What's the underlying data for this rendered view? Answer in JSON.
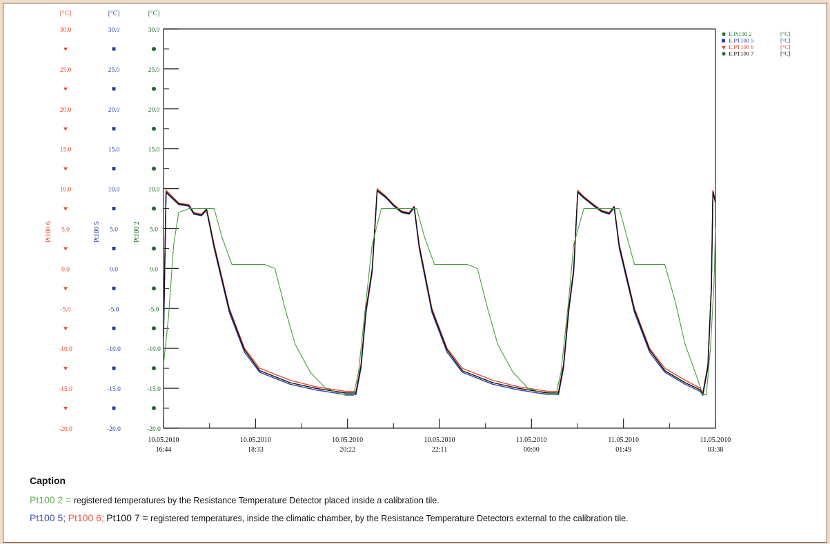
{
  "chart_data": {
    "type": "line",
    "x_ticks": [
      {
        "date": "10.05.2010",
        "time": "16:44"
      },
      {
        "date": "10.05.2010",
        "time": "18:33"
      },
      {
        "date": "10.05.2010",
        "time": "20:22"
      },
      {
        "date": "10.05.2010",
        "time": "22:11"
      },
      {
        "date": "11.05.2010",
        "time": "00:00"
      },
      {
        "date": "11.05.2010",
        "time": "01:49"
      },
      {
        "date": "11.05.2010",
        "time": "03:38"
      }
    ],
    "x_unit_hours": true,
    "xlim": [
      0,
      10.9
    ],
    "ylim": [
      -20,
      30
    ],
    "y_ticks": [
      "30.0",
      "25.0",
      "20.0",
      "15.0",
      "10.0",
      "5.0",
      "0.0",
      "-5.0",
      "-10.0",
      "-15.0",
      "-20.0"
    ],
    "y_axes": [
      {
        "unit": "[°C]",
        "label": "Pt100 6",
        "color": "#e8472f",
        "marker": "triangle"
      },
      {
        "unit": "[°C]",
        "label": "Pt100 5",
        "color": "#2a3fa3",
        "marker": "square"
      },
      {
        "unit": "[°C]",
        "label": "Pt100 2",
        "color": "#1f6b2a",
        "marker": "circle"
      }
    ],
    "legend": [
      {
        "name": "E.Pt100 2",
        "unit": "[°C]",
        "color": "#1f7a2f",
        "marker": "circle"
      },
      {
        "name": "E.PT100 5",
        "unit": "[°C]",
        "color": "#2a3fa3",
        "marker": "square"
      },
      {
        "name": "E.PT100 6",
        "unit": "[°C]",
        "color": "#e8472f",
        "marker": "triangle"
      },
      {
        "name": "E.PT100 7",
        "unit": "[°C]",
        "color": "#111111",
        "marker": "circle-black"
      }
    ],
    "legend_position": "top-right",
    "series": [
      {
        "name": "E.PT100 6",
        "color": "#e8472f",
        "points": [
          [
            0,
            -8
          ],
          [
            0.05,
            9.8
          ],
          [
            0.3,
            8.2
          ],
          [
            0.5,
            8
          ],
          [
            0.6,
            7
          ],
          [
            0.75,
            6.8
          ],
          [
            0.85,
            7.5
          ],
          [
            1.0,
            3
          ],
          [
            1.3,
            -5
          ],
          [
            1.6,
            -10
          ],
          [
            1.9,
            -12.5
          ],
          [
            2.5,
            -14
          ],
          [
            3.0,
            -14.8
          ],
          [
            3.6,
            -15.4
          ],
          [
            3.8,
            -15.4
          ],
          [
            3.9,
            -12
          ],
          [
            4.0,
            -5
          ],
          [
            4.12,
            0
          ],
          [
            4.22,
            10
          ],
          [
            4.4,
            9
          ],
          [
            4.55,
            8
          ],
          [
            4.7,
            7.2
          ],
          [
            4.85,
            7
          ],
          [
            4.95,
            7.8
          ],
          [
            5.05,
            3
          ],
          [
            5.3,
            -5
          ],
          [
            5.6,
            -10
          ],
          [
            5.9,
            -12.5
          ],
          [
            6.5,
            -14
          ],
          [
            7.0,
            -14.8
          ],
          [
            7.6,
            -15.4
          ],
          [
            7.8,
            -15.4
          ],
          [
            7.9,
            -12
          ],
          [
            8.0,
            -5
          ],
          [
            8.1,
            0
          ],
          [
            8.18,
            9.8
          ],
          [
            8.3,
            9
          ],
          [
            8.5,
            8
          ],
          [
            8.65,
            7.3
          ],
          [
            8.8,
            7
          ],
          [
            8.9,
            7.8
          ],
          [
            9.0,
            3
          ],
          [
            9.3,
            -5
          ],
          [
            9.6,
            -10
          ],
          [
            9.9,
            -12.5
          ],
          [
            10.3,
            -14
          ],
          [
            10.6,
            -15
          ],
          [
            10.65,
            -15.6
          ],
          [
            10.75,
            -12
          ],
          [
            10.82,
            -2
          ],
          [
            10.85,
            9.8
          ],
          [
            10.9,
            8.5
          ]
        ]
      },
      {
        "name": "E.PT100 5",
        "color": "#2a3fa3",
        "points": [
          [
            0,
            -9
          ],
          [
            0.05,
            9.5
          ],
          [
            0.3,
            8
          ],
          [
            0.5,
            7.8
          ],
          [
            0.6,
            6.8
          ],
          [
            0.75,
            6.6
          ],
          [
            0.85,
            7.3
          ],
          [
            1.0,
            2.5
          ],
          [
            1.3,
            -5.5
          ],
          [
            1.6,
            -10.5
          ],
          [
            1.9,
            -13
          ],
          [
            2.5,
            -14.5
          ],
          [
            3.0,
            -15.2
          ],
          [
            3.6,
            -15.8
          ],
          [
            3.8,
            -15.8
          ],
          [
            3.9,
            -12.5
          ],
          [
            4.0,
            -5.5
          ],
          [
            4.12,
            -0.5
          ],
          [
            4.22,
            9.7
          ],
          [
            4.4,
            8.8
          ],
          [
            4.55,
            7.8
          ],
          [
            4.7,
            7
          ],
          [
            4.85,
            6.8
          ],
          [
            4.95,
            7.6
          ],
          [
            5.05,
            2.5
          ],
          [
            5.3,
            -5.5
          ],
          [
            5.6,
            -10.5
          ],
          [
            5.9,
            -13
          ],
          [
            6.5,
            -14.5
          ],
          [
            7.0,
            -15.2
          ],
          [
            7.6,
            -15.8
          ],
          [
            7.8,
            -15.8
          ],
          [
            7.9,
            -12.5
          ],
          [
            8.0,
            -5.5
          ],
          [
            8.1,
            -0.5
          ],
          [
            8.18,
            9.5
          ],
          [
            8.3,
            8.8
          ],
          [
            8.5,
            7.8
          ],
          [
            8.65,
            7.1
          ],
          [
            8.8,
            6.8
          ],
          [
            8.9,
            7.6
          ],
          [
            9.0,
            2.5
          ],
          [
            9.3,
            -5.5
          ],
          [
            9.6,
            -10.5
          ],
          [
            9.9,
            -13
          ],
          [
            10.3,
            -14.5
          ],
          [
            10.6,
            -15.4
          ],
          [
            10.65,
            -15.9
          ],
          [
            10.75,
            -12.5
          ],
          [
            10.82,
            -2.5
          ],
          [
            10.85,
            9.5
          ],
          [
            10.9,
            8.2
          ]
        ]
      },
      {
        "name": "E.PT100 7",
        "color": "#111111",
        "points": [
          [
            0,
            -8.5
          ],
          [
            0.05,
            9.6
          ],
          [
            0.3,
            8.1
          ],
          [
            0.5,
            7.9
          ],
          [
            0.6,
            6.9
          ],
          [
            0.75,
            6.7
          ],
          [
            0.85,
            7.4
          ],
          [
            1.0,
            2.8
          ],
          [
            1.3,
            -5.2
          ],
          [
            1.6,
            -10.2
          ],
          [
            1.9,
            -12.8
          ],
          [
            2.5,
            -14.3
          ],
          [
            3.0,
            -15
          ],
          [
            3.6,
            -15.6
          ],
          [
            3.8,
            -15.6
          ],
          [
            3.9,
            -12.2
          ],
          [
            4.0,
            -5.2
          ],
          [
            4.12,
            -0.2
          ],
          [
            4.22,
            9.8
          ],
          [
            4.4,
            8.9
          ],
          [
            4.55,
            7.9
          ],
          [
            4.7,
            7.1
          ],
          [
            4.85,
            6.9
          ],
          [
            4.95,
            7.7
          ],
          [
            5.05,
            2.8
          ],
          [
            5.3,
            -5.2
          ],
          [
            5.6,
            -10.2
          ],
          [
            5.9,
            -12.8
          ],
          [
            6.5,
            -14.3
          ],
          [
            7.0,
            -15
          ],
          [
            7.6,
            -15.6
          ],
          [
            7.8,
            -15.6
          ],
          [
            7.9,
            -12.2
          ],
          [
            8.0,
            -5.2
          ],
          [
            8.1,
            -0.2
          ],
          [
            8.18,
            9.6
          ],
          [
            8.3,
            8.9
          ],
          [
            8.5,
            7.9
          ],
          [
            8.65,
            7.2
          ],
          [
            8.8,
            6.9
          ],
          [
            8.9,
            7.7
          ],
          [
            9.0,
            2.8
          ],
          [
            9.3,
            -5.2
          ],
          [
            9.6,
            -10.2
          ],
          [
            9.9,
            -12.8
          ],
          [
            10.3,
            -14.3
          ],
          [
            10.6,
            -15.2
          ],
          [
            10.65,
            -15.7
          ],
          [
            10.75,
            -12.2
          ],
          [
            10.82,
            -2.2
          ],
          [
            10.85,
            9.6
          ],
          [
            10.9,
            8.3
          ]
        ]
      },
      {
        "name": "E.Pt100 2",
        "color": "#4a9a3f",
        "points": [
          [
            0,
            -12
          ],
          [
            0.1,
            -6
          ],
          [
            0.2,
            3
          ],
          [
            0.3,
            7
          ],
          [
            0.5,
            7.5
          ],
          [
            1.0,
            7.5
          ],
          [
            1.15,
            4
          ],
          [
            1.35,
            0.5
          ],
          [
            2.0,
            0.5
          ],
          [
            2.2,
            0
          ],
          [
            2.4,
            -5
          ],
          [
            2.6,
            -9.5
          ],
          [
            2.9,
            -13
          ],
          [
            3.2,
            -15
          ],
          [
            3.6,
            -15.9
          ],
          [
            3.75,
            -15.9
          ],
          [
            3.85,
            -13
          ],
          [
            4.0,
            -4
          ],
          [
            4.12,
            3
          ],
          [
            4.3,
            7.5
          ],
          [
            5.0,
            7.5
          ],
          [
            5.15,
            4
          ],
          [
            5.35,
            0.5
          ],
          [
            6.0,
            0.5
          ],
          [
            6.2,
            0
          ],
          [
            6.4,
            -5
          ],
          [
            6.6,
            -9.5
          ],
          [
            6.9,
            -13
          ],
          [
            7.2,
            -15
          ],
          [
            7.6,
            -15.8
          ],
          [
            7.75,
            -15.8
          ],
          [
            7.85,
            -13
          ],
          [
            8.0,
            -4
          ],
          [
            8.1,
            3
          ],
          [
            8.3,
            7.5
          ],
          [
            9.0,
            7.5
          ],
          [
            9.15,
            4
          ],
          [
            9.3,
            0.5
          ],
          [
            9.9,
            0.5
          ],
          [
            10.1,
            -4
          ],
          [
            10.3,
            -9.5
          ],
          [
            10.5,
            -13
          ],
          [
            10.65,
            -15.8
          ],
          [
            10.72,
            -15.8
          ],
          [
            10.8,
            -10
          ],
          [
            10.87,
            -2
          ],
          [
            10.9,
            5
          ]
        ]
      }
    ]
  },
  "caption": {
    "title": "Caption",
    "line1_label": "Pt100 2 =",
    "line1_text": "registered temperatures by the Resistance Temperature Detector placed inside a calibration tile.",
    "line2_label_5": "Pt100 5;",
    "line2_label_6": "Pt100 6;",
    "line2_label_7": "Pt100 7 =",
    "line2_text": "registered temperatures, inside the climatic chamber, by the Resistance Temperature Detectors external to the calibration tile."
  },
  "colors": {
    "pt100_2": "#4a9a3f",
    "pt100_5": "#2a3fa3",
    "pt100_6": "#e8472f",
    "pt100_7": "#111111",
    "background": "#f0dcc9"
  }
}
